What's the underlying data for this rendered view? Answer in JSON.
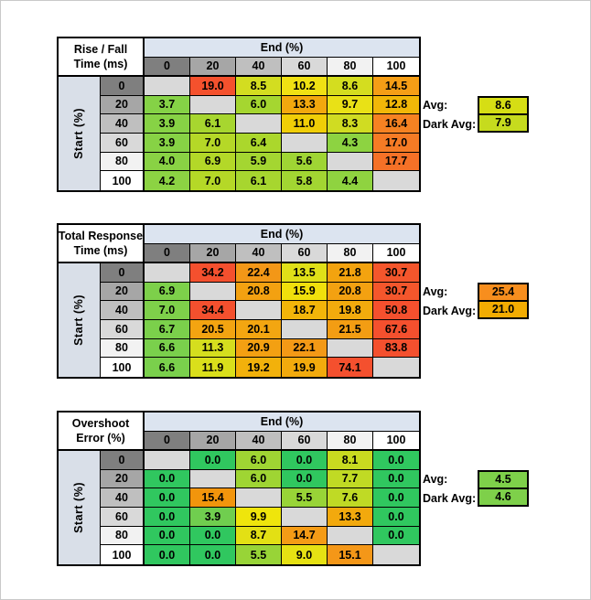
{
  "style": {
    "banner_bg": "#DCE4F0",
    "start_col_bg": "#D9DFE8",
    "blank_cell_bg": "#D9D9D9",
    "header_shades": [
      "#7F7F7F",
      "#A6A6A6",
      "#BFBFBF",
      "#D9D9D9",
      "#F2F2F2",
      "#FFFFFF"
    ]
  },
  "chart_data": [
    {
      "type": "heatmap",
      "title_lines": [
        "Rise / Fall",
        "Time (ms)"
      ],
      "x_label": "End (%)",
      "y_label": "Start (%)",
      "x_ticks": [
        0,
        20,
        40,
        60,
        80,
        100
      ],
      "y_ticks": [
        0,
        20,
        40,
        60,
        80,
        100
      ],
      "values": [
        [
          null,
          19.0,
          8.5,
          10.2,
          8.6,
          14.5
        ],
        [
          3.7,
          null,
          6.0,
          13.3,
          9.7,
          12.8
        ],
        [
          3.9,
          6.1,
          null,
          11.0,
          8.3,
          16.4
        ],
        [
          3.9,
          7.0,
          6.4,
          null,
          4.3,
          17.0
        ],
        [
          4.0,
          6.9,
          5.9,
          5.6,
          null,
          17.7
        ],
        [
          4.2,
          7.0,
          6.1,
          5.8,
          4.4,
          null
        ]
      ],
      "cell_colors": [
        [
          null,
          "#F4512D",
          "#D3DD20",
          "#F0E113",
          "#D4DD1F",
          "#F59E16"
        ],
        [
          "#85D246",
          null,
          "#A5D630",
          "#F2A80E",
          "#E9E116",
          "#F1B708"
        ],
        [
          "#87D245",
          "#A7D62F",
          null,
          "#F0CE07",
          "#D0DC22",
          "#F58222"
        ],
        [
          "#87D245",
          "#B5D827",
          "#ABD72C",
          null,
          "#8DD341",
          "#F57B25"
        ],
        [
          "#89D244",
          "#B3D828",
          "#A4D631",
          "#9FD534",
          null,
          "#F57127"
        ],
        [
          "#8CD343",
          "#B5D827",
          "#A7D62F",
          "#A2D532",
          "#8FD340",
          null
        ]
      ],
      "avg_label": "Avg:",
      "avg_value": 8.6,
      "avg_color": "#D6DE14",
      "dark_avg_label": "Dark Avg:",
      "dark_avg_value": 7.9,
      "dark_avg_color": "#C6DB1E"
    },
    {
      "type": "heatmap",
      "title_lines": [
        "Total Response",
        "Time (ms)"
      ],
      "x_label": "End (%)",
      "y_label": "Start (%)",
      "x_ticks": [
        0,
        20,
        40,
        60,
        80,
        100
      ],
      "y_ticks": [
        0,
        20,
        40,
        60,
        80,
        100
      ],
      "values": [
        [
          null,
          34.2,
          22.4,
          13.5,
          21.8,
          30.7
        ],
        [
          6.9,
          null,
          20.8,
          15.9,
          20.8,
          30.7
        ],
        [
          7.0,
          34.4,
          null,
          18.7,
          19.8,
          50.8
        ],
        [
          6.7,
          20.5,
          20.1,
          null,
          21.5,
          67.6
        ],
        [
          6.6,
          11.3,
          20.9,
          22.1,
          null,
          83.8
        ],
        [
          6.6,
          11.9,
          19.2,
          19.9,
          74.1,
          null
        ]
      ],
      "cell_colors": [
        [
          null,
          "#F4502E",
          "#F39717",
          "#E0E018",
          "#F3A30F",
          "#F4562C"
        ],
        [
          "#7DD04A",
          null,
          "#F3A111",
          "#F0E00C",
          "#F3A111",
          "#F4562C"
        ],
        [
          "#7ED04A",
          "#F4502E",
          null,
          "#F2B50A",
          "#F2AB0D",
          "#F4502E"
        ],
        [
          "#7BD04B",
          "#F3A411",
          "#F3A611",
          null,
          "#F39D13",
          "#F4502E"
        ],
        [
          "#7AD04C",
          "#D5DE1E",
          "#F3A012",
          "#F39916",
          null,
          "#F4502E"
        ],
        [
          "#7AD04C",
          "#DADF1B",
          "#F2B10B",
          "#F2AA0D",
          "#F4502E",
          null
        ]
      ],
      "avg_label": "Avg:",
      "avg_value": 25.4,
      "avg_color": "#F78E1E",
      "dark_avg_label": "Dark Avg:",
      "dark_avg_value": 21.0,
      "dark_avg_color": "#F2AC02"
    },
    {
      "type": "heatmap",
      "title_lines": [
        "Overshoot",
        "Error (%)"
      ],
      "x_label": "End (%)",
      "y_label": "Start (%)",
      "x_ticks": [
        0,
        20,
        40,
        60,
        80,
        100
      ],
      "y_ticks": [
        0,
        20,
        40,
        60,
        80,
        100
      ],
      "values": [
        [
          null,
          0.0,
          6.0,
          0.0,
          8.1,
          0.0
        ],
        [
          0.0,
          null,
          6.0,
          0.0,
          7.7,
          0.0
        ],
        [
          0.0,
          15.4,
          null,
          5.5,
          7.6,
          0.0
        ],
        [
          0.0,
          3.9,
          9.9,
          null,
          13.3,
          0.0
        ],
        [
          0.0,
          0.0,
          8.7,
          14.7,
          null,
          0.0
        ],
        [
          0.0,
          0.0,
          5.5,
          9.0,
          15.1,
          null
        ]
      ],
      "cell_colors": [
        [
          null,
          "#30C75F",
          "#9FD533",
          "#30C75F",
          "#C8DB20",
          "#30C75F"
        ],
        [
          "#30C75F",
          null,
          "#9FD533",
          "#30C75F",
          "#C0DA24",
          "#30C75F"
        ],
        [
          "#30C75F",
          "#F2950C",
          null,
          "#98D437",
          "#BFDA25",
          "#30C75F"
        ],
        [
          "#30C75F",
          "#70CE4F",
          "#EFE50C",
          null,
          "#F2A90D",
          "#30C75F"
        ],
        [
          "#30C75F",
          "#30C75F",
          "#E3E014",
          "#F49B16",
          null,
          "#30C75F"
        ],
        [
          "#30C75F",
          "#30C75F",
          "#98D437",
          "#E6E113",
          "#F49718",
          null
        ]
      ],
      "avg_label": "Avg:",
      "avg_value": 4.5,
      "avg_color": "#7ED04A",
      "dark_avg_label": "Dark Avg:",
      "dark_avg_value": 4.6,
      "dark_avg_color": "#7ED04A"
    }
  ]
}
